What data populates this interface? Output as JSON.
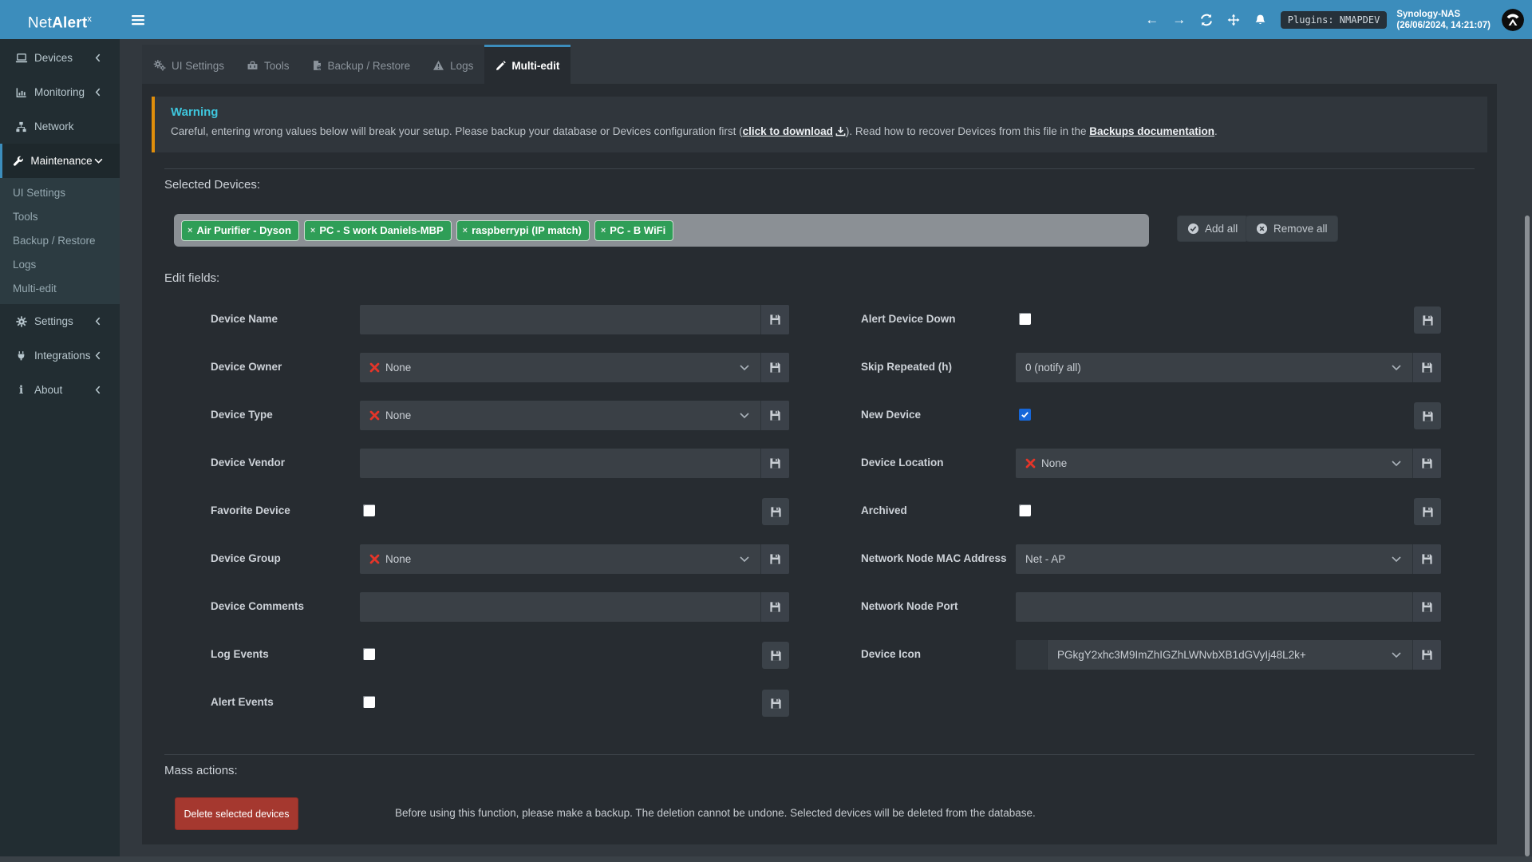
{
  "navbar": {
    "logo_prefix": "Net",
    "logo_bold": "Alert",
    "logo_sup": "x",
    "icons": [
      "menu-bars-icon",
      "back-arrow-icon",
      "forward-arrow-icon",
      "refresh-icon",
      "move-icon",
      "bell-icon"
    ],
    "plugins_badge": "Plugins: NMAPDEV",
    "host_name": "Synology-NAS",
    "host_time": "(26/06/2024, 14:21:07)"
  },
  "sidebar": {
    "items": [
      {
        "label": "Devices",
        "icon": "laptop-icon",
        "chevron": "left"
      },
      {
        "label": "Monitoring",
        "icon": "chart-icon",
        "chevron": "left"
      },
      {
        "label": "Network",
        "icon": "sitemap-icon",
        "chevron": "none"
      },
      {
        "label": "Maintenance",
        "icon": "wrench-icon",
        "chevron": "down",
        "active": true,
        "submenu": [
          "UI Settings",
          "Tools",
          "Backup / Restore",
          "Logs",
          "Multi-edit"
        ]
      },
      {
        "label": "Settings",
        "icon": "gear-icon",
        "chevron": "left"
      },
      {
        "label": "Integrations",
        "icon": "plug-icon",
        "chevron": "left"
      },
      {
        "label": "About",
        "icon": "info-icon",
        "chevron": "left"
      }
    ]
  },
  "tabs": [
    {
      "label": "UI Settings",
      "icon": "gears-icon",
      "active": false
    },
    {
      "label": "Tools",
      "icon": "toolbox-icon",
      "active": false
    },
    {
      "label": "Backup / Restore",
      "icon": "backup-file-icon",
      "active": false
    },
    {
      "label": "Logs",
      "icon": "warning-triangle-icon",
      "active": false
    },
    {
      "label": "Multi-edit",
      "icon": "pencil-icon",
      "active": true
    }
  ],
  "warning": {
    "title": "Warning",
    "text_before": "Careful, entering wrong values below will break your setup. Please backup your database or Devices configuration first (",
    "download_link": "click to download",
    "text_middle": "). Read how to recover Devices from this file in the ",
    "docs_link": "Backups documentation",
    "text_after": "."
  },
  "selected_devices": {
    "heading": "Selected Devices:",
    "tags": [
      "Air Purifier - Dyson",
      "PC - S work Daniels-MBP",
      "raspberrypi (IP match)",
      "PC - B WiFi"
    ],
    "add_all_label": "Add all",
    "remove_all_label": "Remove all"
  },
  "edit_fields": {
    "heading": "Edit fields:",
    "left": [
      {
        "label": "Device Name",
        "type": "text",
        "value": ""
      },
      {
        "label": "Device Owner",
        "type": "select",
        "value": "None",
        "none_marker": true
      },
      {
        "label": "Device Type",
        "type": "select",
        "value": "None",
        "none_marker": true
      },
      {
        "label": "Device Vendor",
        "type": "text",
        "value": ""
      },
      {
        "label": "Favorite Device",
        "type": "checkbox",
        "checked": false
      },
      {
        "label": "Device Group",
        "type": "select",
        "value": "None",
        "none_marker": true
      },
      {
        "label": "Device Comments",
        "type": "text",
        "value": ""
      },
      {
        "label": "Log Events",
        "type": "checkbox",
        "checked": false
      },
      {
        "label": "Alert Events",
        "type": "checkbox",
        "checked": false
      }
    ],
    "right": [
      {
        "label": "Alert Device Down",
        "type": "checkbox",
        "checked": false
      },
      {
        "label": "Skip Repeated (h)",
        "type": "select",
        "value": "0 (notify all)",
        "none_marker": false
      },
      {
        "label": "New Device",
        "type": "checkbox",
        "checked": true
      },
      {
        "label": "Device Location",
        "type": "select",
        "value": "None",
        "none_marker": true
      },
      {
        "label": "Archived",
        "type": "checkbox",
        "checked": false
      },
      {
        "label": "Network Node MAC Address",
        "type": "select",
        "value": "Net - AP",
        "none_marker": false
      },
      {
        "label": "Network Node Port",
        "type": "text",
        "value": ""
      },
      {
        "label": "Device Icon",
        "type": "select",
        "value": "PGkgY2xhc3M9ImZhIGZhLWNvbXB1dGVyIj48L2k+",
        "none_marker": false,
        "icon_preview": true
      }
    ]
  },
  "mass_actions": {
    "heading": "Mass actions:",
    "delete_label": "Delete selected devices",
    "note": "Before using this function, please make a backup. The deletion cannot be undone. Selected devices will be deleted from the database."
  },
  "colors": {
    "accent": "#3c8dbc",
    "warning_border": "#e08e0b",
    "warning_title": "#3ec6dd",
    "tag_green": "#2f9e57",
    "delete_red": "#a5382f",
    "checkbox_checked_blue": "#1667d9",
    "none_x_red": "#e53529"
  }
}
